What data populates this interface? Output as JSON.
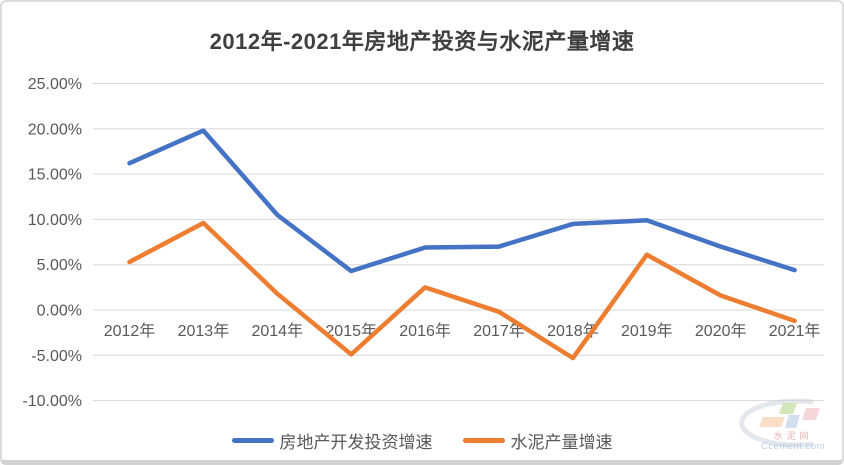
{
  "title": "2012年-2021年房地产投资与水泥产量增速",
  "chart_data": {
    "type": "line",
    "title": "2012年-2021年房地产投资与水泥产量增速",
    "categories": [
      "2012年",
      "2013年",
      "2014年",
      "2015年",
      "2016年",
      "2017年",
      "2018年",
      "2019年",
      "2020年",
      "2021年"
    ],
    "series": [
      {
        "name": "房地产开发投资增速",
        "color": "#4472C4",
        "values": [
          16.2,
          19.8,
          10.5,
          4.3,
          6.9,
          7.0,
          9.5,
          9.9,
          7.0,
          4.4
        ]
      },
      {
        "name": "水泥产量增速",
        "color": "#ED7D31",
        "values": [
          5.3,
          9.6,
          1.8,
          -4.9,
          2.5,
          -0.2,
          -5.3,
          6.1,
          1.6,
          -1.2
        ]
      }
    ],
    "ylim": [
      -10,
      25
    ],
    "ytick_step": 5,
    "yticks": [
      {
        "value": 25,
        "label": "25.00%"
      },
      {
        "value": 20,
        "label": "20.00%"
      },
      {
        "value": 15,
        "label": "15.00%"
      },
      {
        "value": 10,
        "label": "10.00%"
      },
      {
        "value": 5,
        "label": "5.00%"
      },
      {
        "value": 0,
        "label": "0.00%"
      },
      {
        "value": -5,
        "label": "-5.00%"
      },
      {
        "value": -10,
        "label": "-10.00%"
      }
    ],
    "xlabel": "",
    "ylabel": "",
    "grid": true,
    "gridline_color": "#d9d9d9",
    "legend_position": "bottom"
  },
  "colors": {
    "title_text": "#3f3f3f",
    "axis_text": "#595959",
    "frame_border": "#dbdbdb",
    "background": "#ffffff"
  },
  "watermark": {
    "brand": "水泥网",
    "site": "Ccement.com"
  }
}
